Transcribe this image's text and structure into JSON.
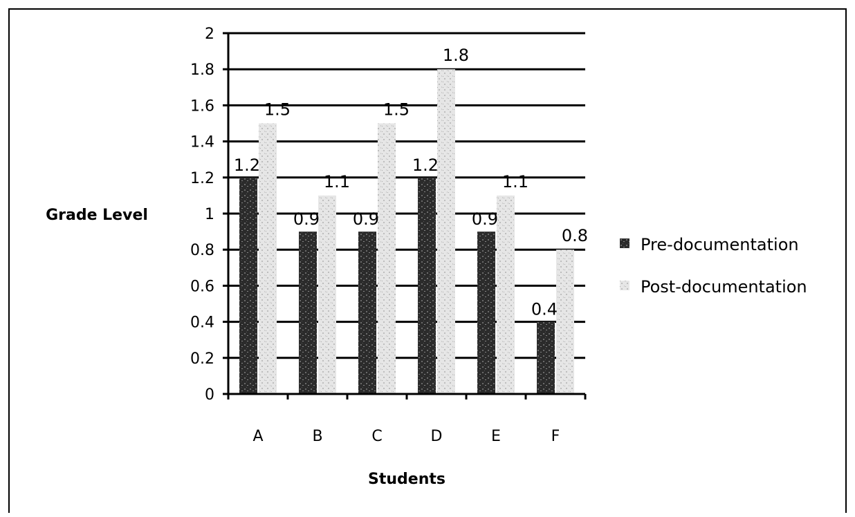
{
  "chart_data": {
    "type": "bar",
    "title": "",
    "xlabel": "Students",
    "ylabel": "Grade Level",
    "categories": [
      "A",
      "B",
      "C",
      "D",
      "E",
      "F"
    ],
    "series": [
      {
        "name": "Pre-documentation",
        "values": [
          1.2,
          0.9,
          0.9,
          1.2,
          0.9,
          0.4
        ],
        "color": "#2a2a2a",
        "pattern": "dark-speckle"
      },
      {
        "name": "Post-documentation",
        "values": [
          1.5,
          1.1,
          1.5,
          1.8,
          1.1,
          0.8
        ],
        "color": "#e4e4e4",
        "pattern": "light-speckle"
      }
    ],
    "data_labels": {
      "Pre-documentation": [
        "1.2",
        "0.9",
        "0.9",
        "1.2",
        "0.9",
        "0.4"
      ],
      "Post-documentation": [
        "1.5",
        "1.1",
        "1.5",
        "1.8",
        "1.1",
        "0.8"
      ]
    },
    "ylim": [
      0,
      2
    ],
    "yticks": [
      "0",
      "0.2",
      "0.4",
      "0.6",
      "0.8",
      "1",
      "1.2",
      "1.4",
      "1.6",
      "1.8",
      "2"
    ],
    "grid": true,
    "legend_position": "right"
  }
}
